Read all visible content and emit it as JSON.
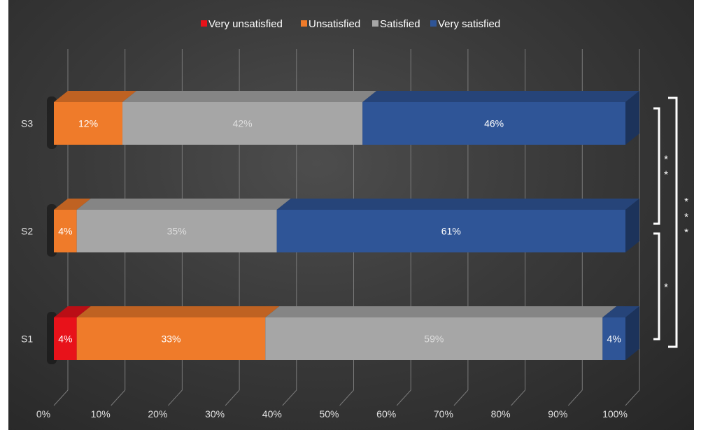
{
  "chart_data": {
    "type": "bar",
    "orientation": "horizontal",
    "stacked": true,
    "percent_stacked": true,
    "three_d": true,
    "title": "",
    "xlabel": "",
    "ylabel": "",
    "categories": [
      "S1",
      "S2",
      "S3"
    ],
    "series": [
      {
        "name": "Very unsatisfied",
        "color": "#e8121a",
        "values": [
          4,
          0,
          0
        ],
        "labels": [
          "4%",
          "",
          ""
        ]
      },
      {
        "name": "Unsatisfied",
        "color": "#ef7b2a",
        "values": [
          33,
          4,
          12
        ],
        "labels": [
          "33%",
          "4%",
          "12%"
        ]
      },
      {
        "name": "Satisfied",
        "color": "#a6a6a6",
        "values": [
          59,
          35,
          42
        ],
        "labels": [
          "59%",
          "35%",
          "42%"
        ]
      },
      {
        "name": "Very satisfied",
        "color": "#2f5597",
        "values": [
          4,
          61,
          46
        ],
        "labels": [
          "4%",
          "61%",
          "46%"
        ]
      }
    ],
    "xlim": [
      0,
      100
    ],
    "xticks": [
      "0%",
      "10%",
      "20%",
      "30%",
      "40%",
      "50%",
      "60%",
      "70%",
      "80%",
      "90%",
      "100%"
    ],
    "grid": true,
    "legend_position": "top",
    "significance": [
      {
        "from": "S1",
        "to": "S2",
        "text": "*"
      },
      {
        "from": "S2",
        "to": "S3",
        "text": "**"
      },
      {
        "from": "S1",
        "to": "S3",
        "text": "***"
      }
    ]
  }
}
